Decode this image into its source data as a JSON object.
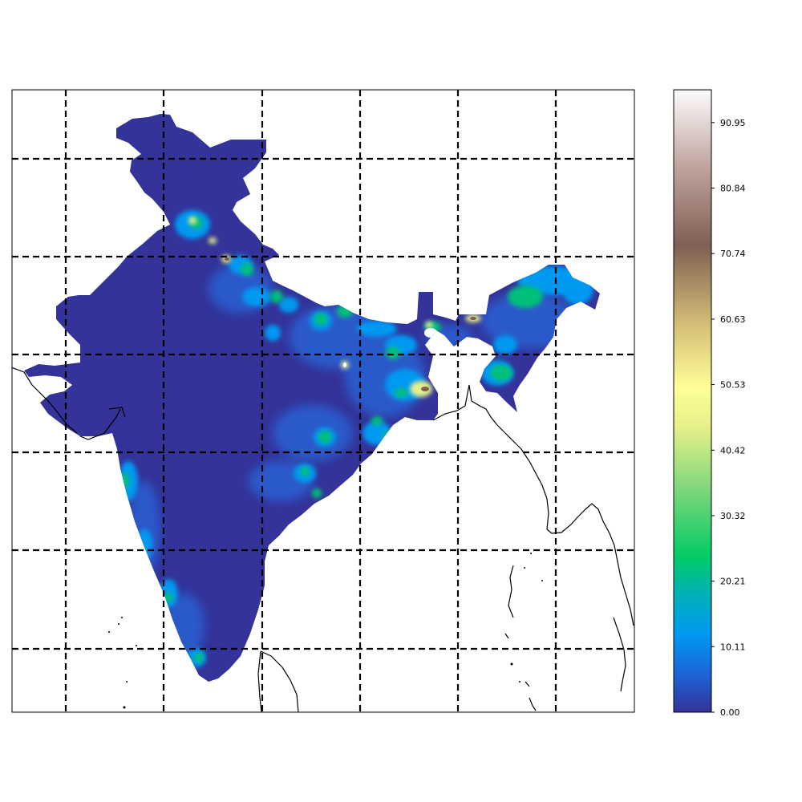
{
  "colorbar": {
    "ticks": [
      "0.00",
      "10.11",
      "20.21",
      "30.32",
      "40.42",
      "50.53",
      "60.63",
      "70.74",
      "80.84",
      "90.95"
    ],
    "range": [
      0,
      96
    ],
    "colormap": "gist_earth_terrain",
    "stops": [
      {
        "value": 0,
        "color": "#333399"
      },
      {
        "value": 6,
        "color": "#1b66d9"
      },
      {
        "value": 12,
        "color": "#0099f2"
      },
      {
        "value": 18,
        "color": "#00b0b8"
      },
      {
        "value": 24,
        "color": "#00cc66"
      },
      {
        "value": 34,
        "color": "#7ad67a"
      },
      {
        "value": 44,
        "color": "#e6f08a"
      },
      {
        "value": 50,
        "color": "#ffff99"
      },
      {
        "value": 60,
        "color": "#d4bc76"
      },
      {
        "value": 72,
        "color": "#7f5f54"
      },
      {
        "value": 84,
        "color": "#bfa39d"
      },
      {
        "value": 96,
        "color": "#fcfcfc"
      }
    ]
  },
  "map": {
    "gridlines": "dashed",
    "land_fill_base": "#333399",
    "coastline_color": "#000000"
  }
}
